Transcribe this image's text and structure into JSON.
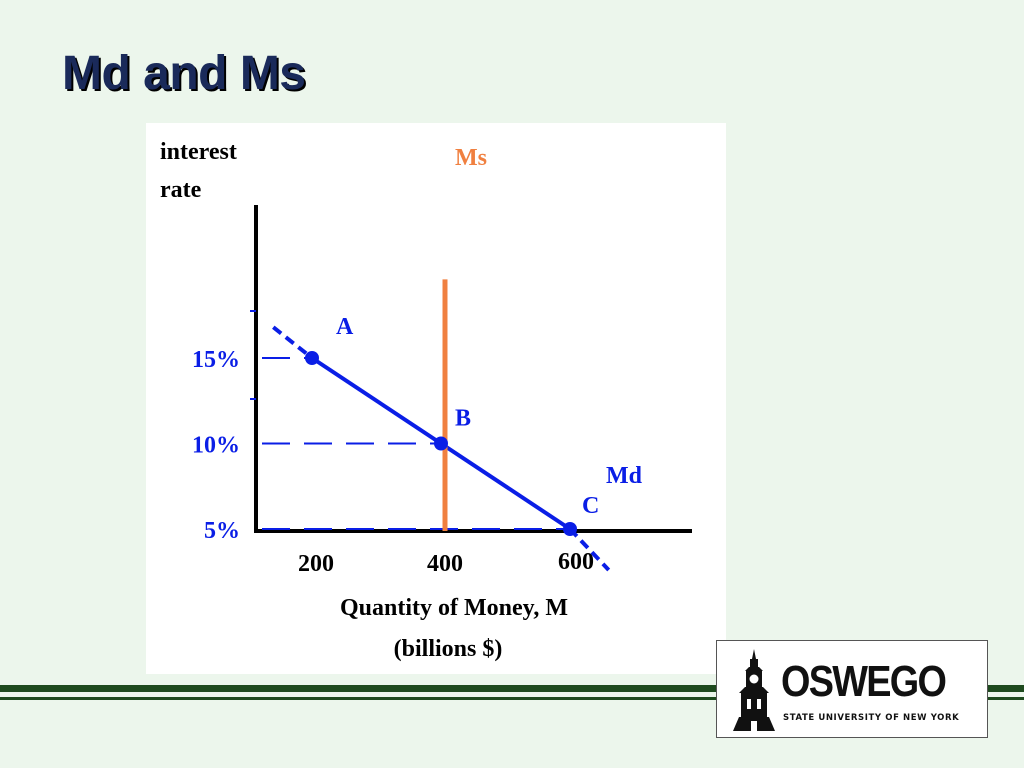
{
  "slide": {
    "title": "Md and Ms"
  },
  "chart_data": {
    "type": "line",
    "ylabel_line1": "interest",
    "ylabel_line2": "rate",
    "xlabel_line1": "Quantity of Money, M",
    "xlabel_line2": "(billions $)",
    "x_ticks": [
      200,
      400,
      600
    ],
    "y_ticks": [
      {
        "value": 15,
        "label": "15%"
      },
      {
        "value": 10,
        "label": "10%"
      },
      {
        "value": 5,
        "label": "5%"
      }
    ],
    "series": [
      {
        "name": "Md",
        "color": "#0a1ee6",
        "line_points": [
          {
            "x": 140,
            "y": 16.8
          },
          {
            "x": 660,
            "y": 2.6
          }
        ],
        "points": [
          {
            "label": "A",
            "x": 200,
            "y": 15
          },
          {
            "label": "B",
            "x": 400,
            "y": 10
          },
          {
            "label": "C",
            "x": 600,
            "y": 5
          }
        ]
      },
      {
        "name": "Ms",
        "color": "#f08040",
        "x": 400,
        "y_range": [
          0,
          19.6
        ]
      }
    ],
    "guide_lines": [
      15,
      10,
      5
    ],
    "colors": {
      "axis_text": "#0a1ee6",
      "axis": "#000000"
    }
  },
  "logo": {
    "word": "OSWEGO",
    "subtitle": "STATE UNIVERSITY OF NEW YORK"
  }
}
